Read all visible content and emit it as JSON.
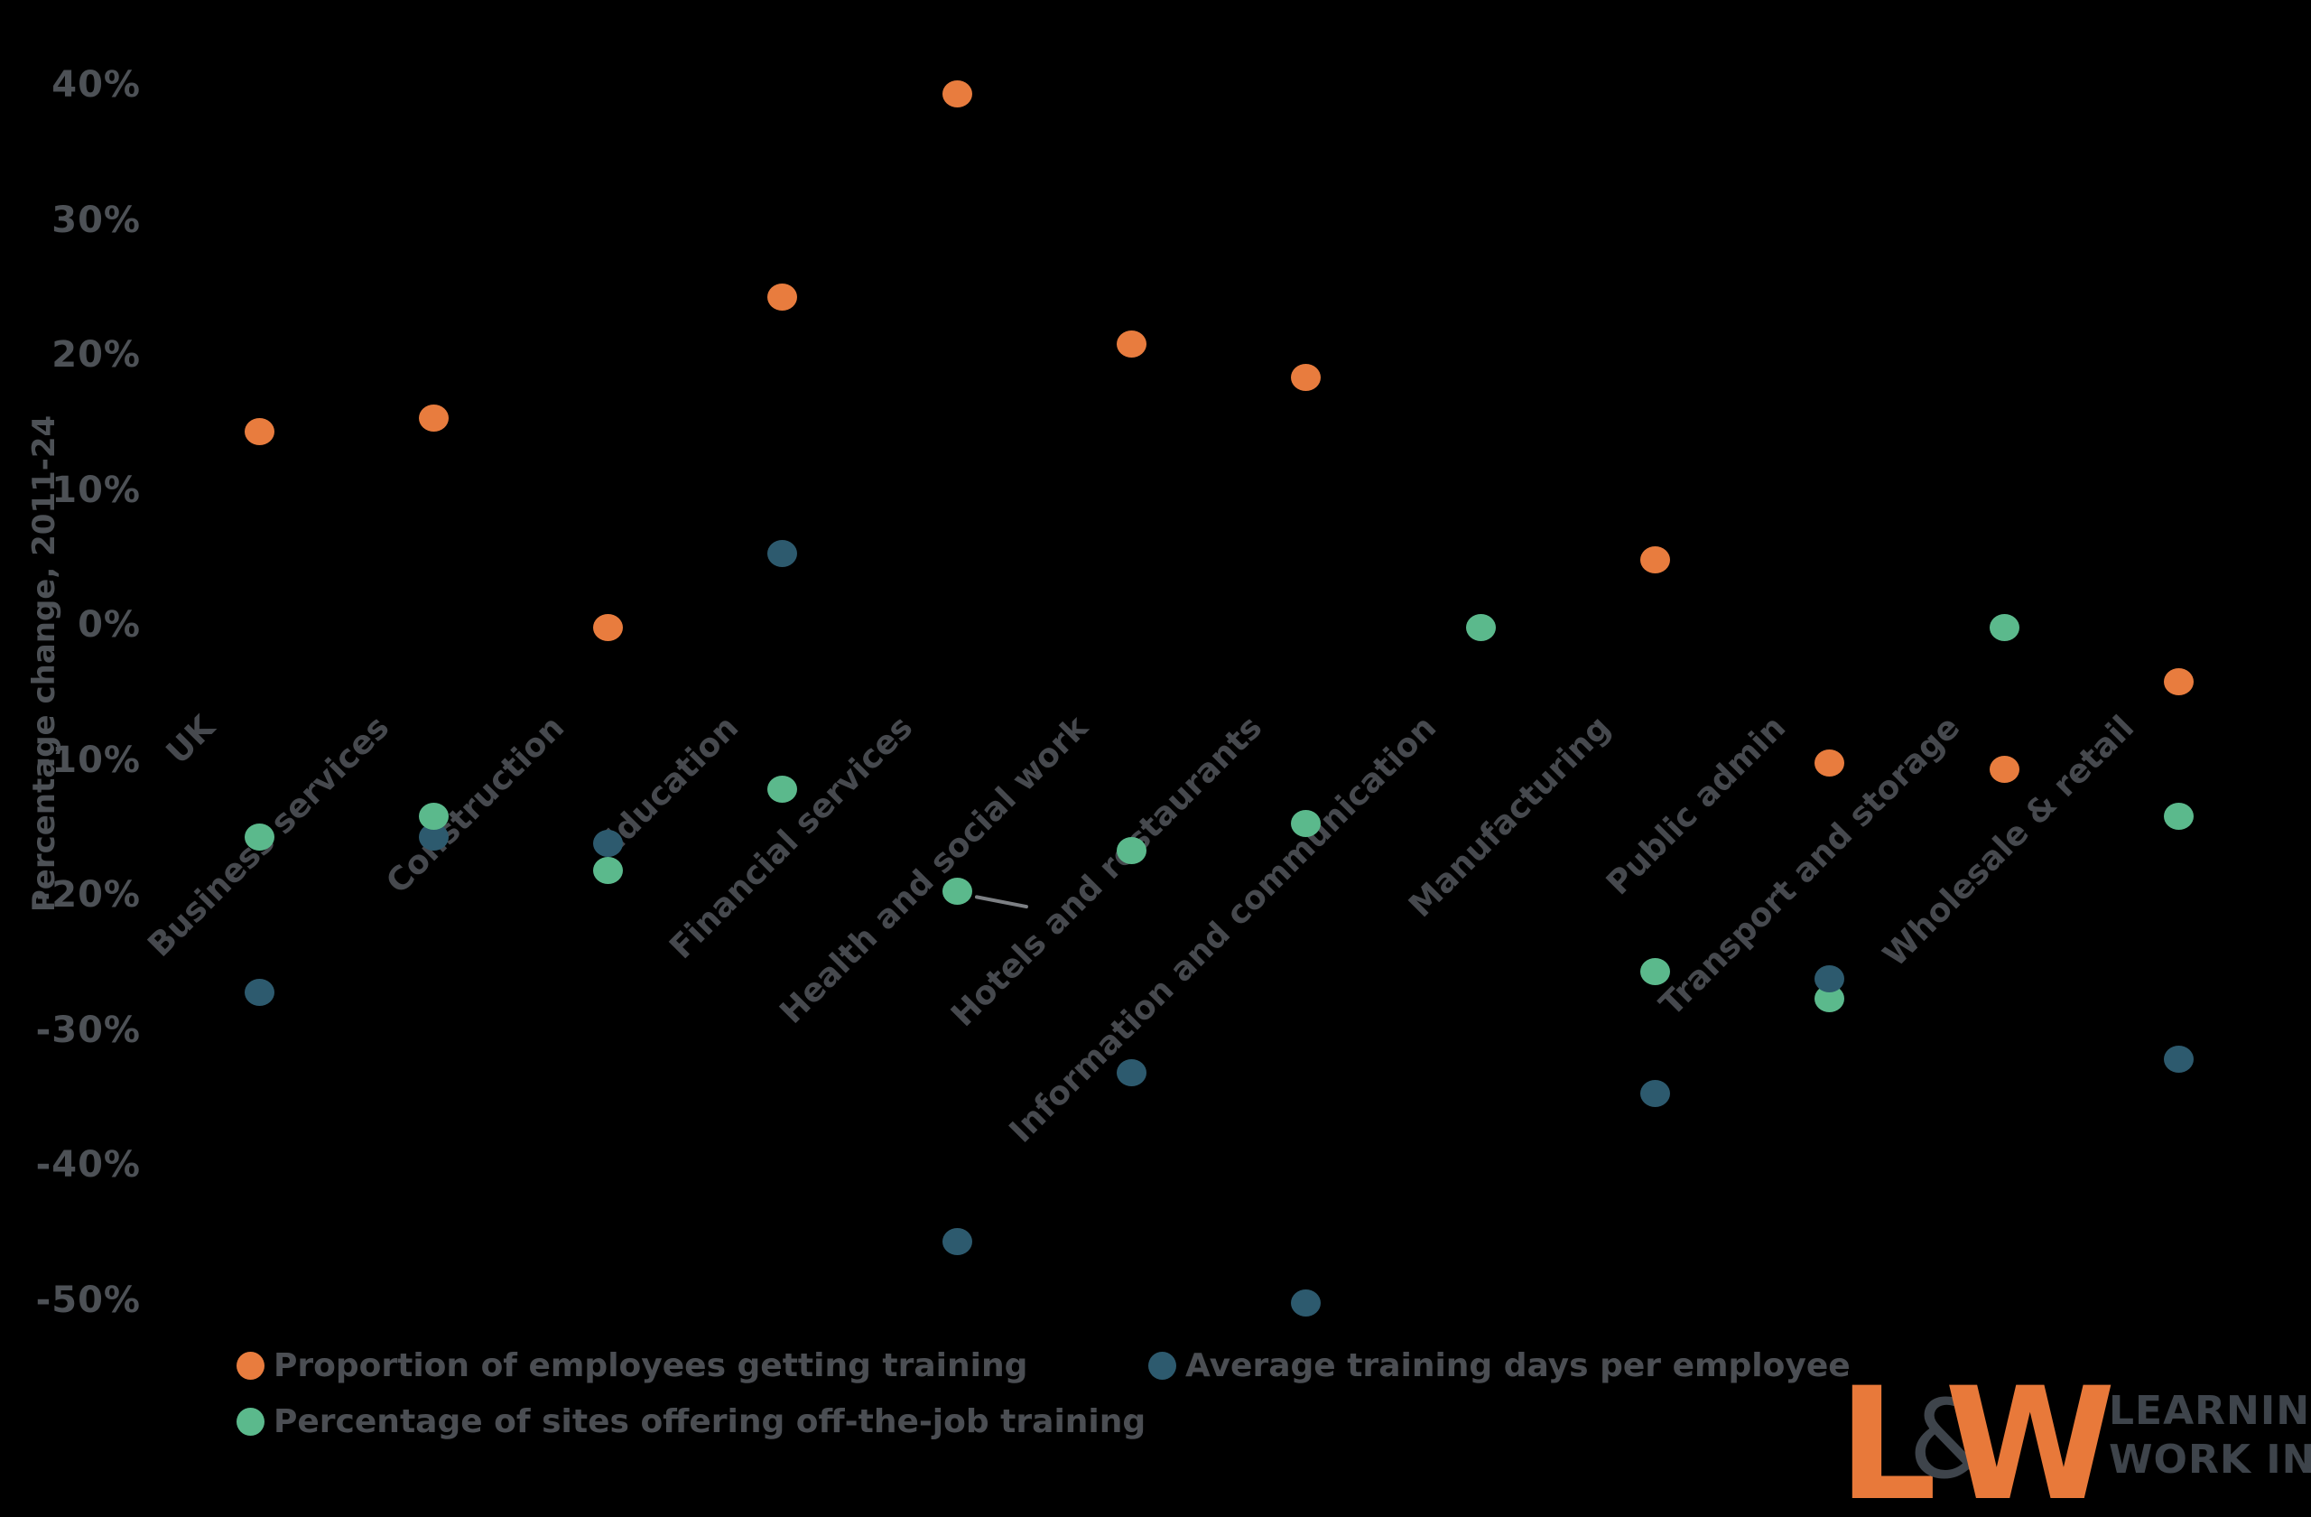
{
  "axis": {
    "y_title": "Percentage change, 2011-24",
    "tick_labels": [
      "40%",
      "30%",
      "20%",
      "10%",
      "0%",
      "-10%",
      "-20%",
      "-30%",
      "-40%",
      "-50%"
    ],
    "tick_values": [
      40,
      30,
      20,
      10,
      0,
      -10,
      -20,
      -30,
      -40,
      -50
    ]
  },
  "chart_data": {
    "type": "scatter",
    "categories": [
      "UK",
      "Business services",
      "Construction",
      "Education",
      "Financial services",
      "Health and social work",
      "Hotels and restaurants",
      "Information and communication",
      "Manufacturing",
      "Public admin",
      "Transport and storage",
      "Wholesale & retail"
    ],
    "series": [
      {
        "name": "Proportion of employees getting training",
        "color": "#e87c3e",
        "values": [
          14.5,
          15.5,
          0,
          24.5,
          39.5,
          21,
          18.5,
          null,
          5,
          -10,
          -10.5,
          -4
        ]
      },
      {
        "name": "Percentage of sites offering off-the-job training",
        "color": "#5bb98c",
        "values": [
          -15.5,
          -14,
          -18,
          -12,
          -19.5,
          -16.5,
          -14.5,
          0,
          -25.5,
          -27.5,
          0,
          -14
        ]
      },
      {
        "name": "Average training days per employee",
        "color": "#2d5a6e",
        "values": [
          -27,
          -15.5,
          -16,
          5.5,
          -45.5,
          -33,
          -50,
          null,
          -34.5,
          -26,
          null,
          -32
        ]
      }
    ],
    "ylabel": "Percentage change, 2011-24",
    "ylim": [
      -50,
      40
    ],
    "grid": false,
    "legend_position": "bottom",
    "annotations": [
      "leader line beside Financial services off-the-job training dot"
    ],
    "dark_on_top_categories": [
      "Public admin"
    ]
  },
  "legend": {
    "items": [
      {
        "label": "Proportion of employees getting training",
        "color": "#e87c3e"
      },
      {
        "label": "Percentage of sites offering off-the-job training",
        "color": "#5bb98c"
      },
      {
        "label": "Average training days per employee",
        "color": "#2d5a6e"
      }
    ]
  },
  "logo": {
    "letter_l": "L",
    "ampersand": "&",
    "letter_w": "W",
    "line1": "LEARNING AND",
    "line2": "WORK INSTITUTE"
  }
}
